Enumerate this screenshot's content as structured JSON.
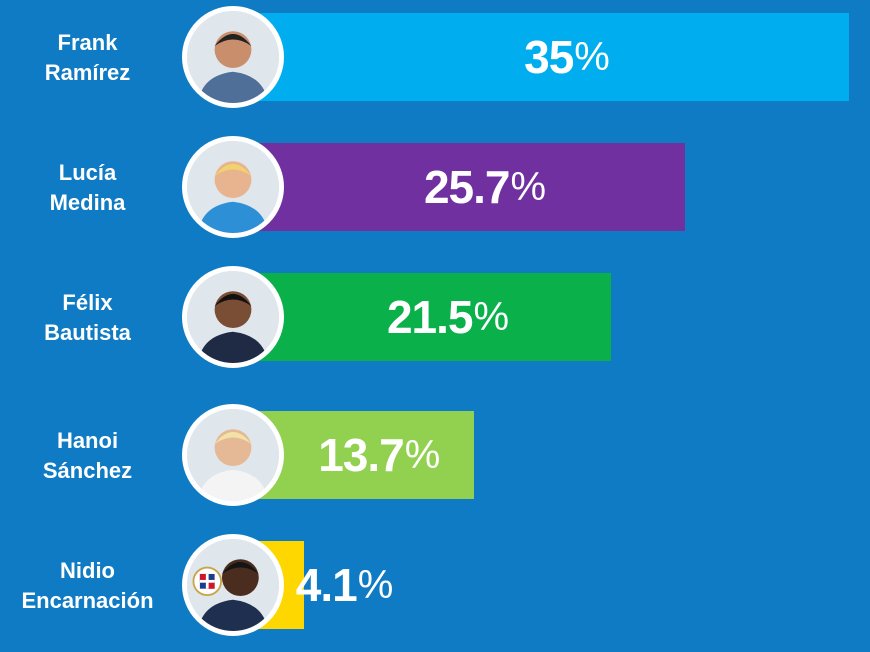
{
  "chart_data": {
    "type": "bar",
    "orientation": "horizontal",
    "categories": [
      "Frank Ramírez",
      "Lucía Medina",
      "Félix Bautista",
      "Hanoi Sánchez",
      "Nidio Encarnación"
    ],
    "values": [
      35,
      25.7,
      21.5,
      13.7,
      4.1
    ],
    "value_labels": [
      "35",
      "25.7",
      "21.5",
      "13.7",
      "4.1"
    ],
    "unit": "%",
    "xlim": [
      0,
      35
    ],
    "title": "",
    "xlabel": "",
    "ylabel": "",
    "grid": false,
    "legend": "none"
  },
  "rows": [
    {
      "first": "Frank",
      "last": "Ramírez",
      "color": "#00adef",
      "avatar_icon": "man-thumbs-up-photo"
    },
    {
      "first": "Lucía",
      "last": "Medina",
      "color": "#7030a0",
      "avatar_icon": "woman-blue-blazer-photo"
    },
    {
      "first": "Félix",
      "last": "Bautista",
      "color": "#0ab14b",
      "avatar_icon": "man-on-phone-photo"
    },
    {
      "first": "Hanoi",
      "last": "Sánchez",
      "color": "#92d050",
      "avatar_icon": "woman-white-blouse-photo"
    },
    {
      "first": "Nidio",
      "last": "Encarnación",
      "color": "#ffd700",
      "avatar_icon": "man-with-seal-photo"
    }
  ],
  "colors": {
    "background": "#0e7bc4",
    "text": "#ffffff"
  }
}
